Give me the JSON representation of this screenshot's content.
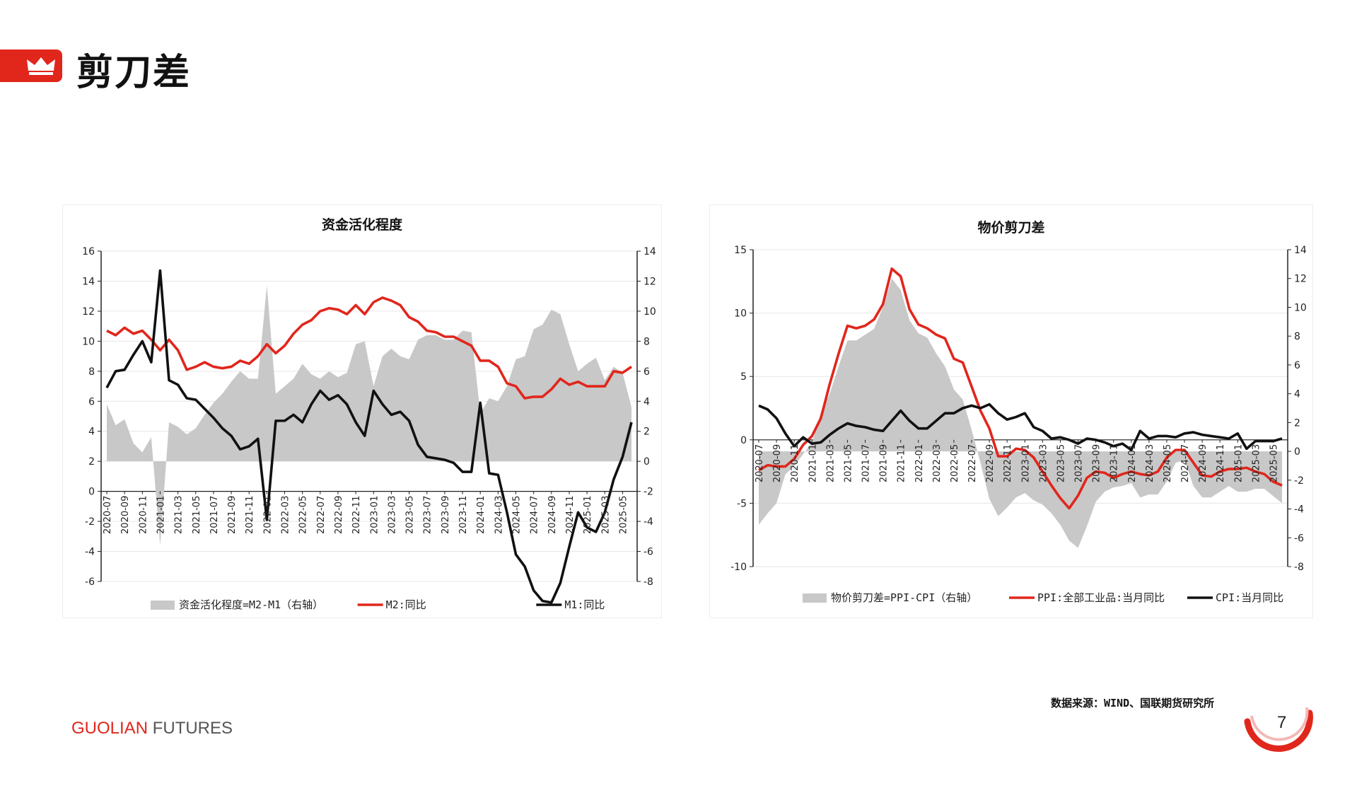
{
  "page": {
    "title": "剪刀差",
    "source": "数据来源：WIND、国联期货研究所",
    "brand_red": "GUOLIAN",
    "brand_gray": " FUTURES",
    "page_number": "7",
    "accent_color": "#e1261c"
  },
  "chart_data": [
    {
      "type": "line",
      "title": "资金活化程度",
      "x": [
        "2020-07",
        "2020-08",
        "2020-09",
        "2020-10",
        "2020-11",
        "2020-12",
        "2021-01",
        "2021-02",
        "2021-03",
        "2021-04",
        "2021-05",
        "2021-06",
        "2021-07",
        "2021-08",
        "2021-09",
        "2021-10",
        "2021-11",
        "2021-12",
        "2022-01",
        "2022-02",
        "2022-03",
        "2022-04",
        "2022-05",
        "2022-06",
        "2022-07",
        "2022-08",
        "2022-09",
        "2022-10",
        "2022-11",
        "2022-12",
        "2023-01",
        "2023-02",
        "2023-03",
        "2023-04",
        "2023-05",
        "2023-06",
        "2023-07",
        "2023-08",
        "2023-09",
        "2023-10",
        "2023-11",
        "2023-12",
        "2024-01",
        "2024-02",
        "2024-03",
        "2024-04",
        "2024-05",
        "2024-06",
        "2024-07",
        "2024-08",
        "2024-09",
        "2024-10",
        "2024-11",
        "2024-12",
        "2025-01",
        "2025-02",
        "2025-03",
        "2025-04",
        "2025-05",
        "2025-06"
      ],
      "x_tick_labels": [
        "2020-07",
        "2020-09",
        "2020-11",
        "2021-01",
        "2021-03",
        "2021-05",
        "2021-07",
        "2021-09",
        "2021-11",
        "2022-01",
        "2022-03",
        "2022-05",
        "2022-07",
        "2022-09",
        "2022-11",
        "2023-01",
        "2023-03",
        "2023-05",
        "2023-07",
        "2023-09",
        "2023-11",
        "2024-01",
        "2024-03",
        "2024-05",
        "2024-07",
        "2024-09",
        "2024-11",
        "2025-01",
        "2025-03",
        "2025-05"
      ],
      "ylim_left": [
        -6,
        16
      ],
      "yticks_left": [
        -6,
        -4,
        -2,
        0,
        2,
        4,
        6,
        8,
        10,
        12,
        14,
        16
      ],
      "ylim_right": [
        -8,
        14
      ],
      "yticks_right": [
        -8,
        -6,
        -4,
        -2,
        0,
        2,
        4,
        6,
        8,
        10,
        12,
        14
      ],
      "series": [
        {
          "name": "资金活化程度=M2-M1（右轴）",
          "kind": "area",
          "axis": "right",
          "color": "#c8c8c8",
          "values": [
            3.8,
            2.4,
            2.8,
            1.2,
            0.6,
            1.6,
            -5.6,
            2.6,
            2.3,
            1.8,
            2.2,
            3.1,
            3.9,
            4.5,
            5.3,
            6.0,
            5.5,
            5.5,
            11.7,
            4.5,
            5.0,
            5.5,
            6.5,
            5.8,
            5.5,
            6.0,
            5.6,
            5.9,
            7.8,
            8.0,
            5.0,
            7.0,
            7.5,
            7.0,
            6.8,
            8.1,
            8.4,
            8.4,
            8.1,
            8.1,
            8.7,
            8.6,
            3.2,
            4.2,
            4.0,
            5.0,
            6.8,
            7.0,
            8.8,
            9.1,
            10.1,
            9.8,
            7.8,
            6.0,
            6.5,
            6.9,
            5.4,
            6.3,
            5.9,
            3.6
          ]
        },
        {
          "name": "M2:同比",
          "kind": "line",
          "axis": "left",
          "color": "#e1261c",
          "values": [
            10.7,
            10.4,
            10.9,
            10.5,
            10.7,
            10.1,
            9.4,
            10.1,
            9.4,
            8.1,
            8.3,
            8.6,
            8.3,
            8.2,
            8.3,
            8.7,
            8.5,
            9.0,
            9.8,
            9.2,
            9.7,
            10.5,
            11.1,
            11.4,
            12.0,
            12.2,
            12.1,
            11.8,
            12.4,
            11.8,
            12.6,
            12.9,
            12.7,
            12.4,
            11.6,
            11.3,
            10.7,
            10.6,
            10.3,
            10.3,
            10.0,
            9.7,
            8.7,
            8.7,
            8.3,
            7.2,
            7.0,
            6.2,
            6.3,
            6.3,
            6.8,
            7.5,
            7.1,
            7.3,
            7.0,
            7.0,
            7.0,
            8.0,
            7.9,
            8.3
          ]
        },
        {
          "name": "M1:同比",
          "kind": "line",
          "axis": "left",
          "color": "#111111",
          "values": [
            6.9,
            8.0,
            8.1,
            9.1,
            10.0,
            8.6,
            14.7,
            7.4,
            7.1,
            6.2,
            6.1,
            5.5,
            4.9,
            4.2,
            3.7,
            2.8,
            3.0,
            3.5,
            -1.9,
            4.7,
            4.7,
            5.1,
            4.6,
            5.8,
            6.7,
            6.1,
            6.4,
            5.8,
            4.6,
            3.7,
            6.7,
            5.8,
            5.1,
            5.3,
            4.7,
            3.1,
            2.3,
            2.2,
            2.1,
            1.9,
            1.3,
            1.3,
            5.9,
            1.2,
            1.1,
            -1.4,
            -4.2,
            -5.0,
            -6.6,
            -7.3,
            -7.4,
            -6.1,
            -3.7,
            -1.4,
            -2.4,
            -2.7,
            -1.4,
            0.8,
            2.3,
            4.6
          ]
        }
      ],
      "series_axis_note": "M2/M1 plotted against left axis; 资金活化程度 against right axis",
      "legend_position": "bottom",
      "grid": true
    },
    {
      "type": "line",
      "title": "物价剪刀差",
      "x": [
        "2020-07",
        "2020-08",
        "2020-09",
        "2020-10",
        "2020-11",
        "2020-12",
        "2021-01",
        "2021-02",
        "2021-03",
        "2021-04",
        "2021-05",
        "2021-06",
        "2021-07",
        "2021-08",
        "2021-09",
        "2021-10",
        "2021-11",
        "2021-12",
        "2022-01",
        "2022-02",
        "2022-03",
        "2022-04",
        "2022-05",
        "2022-06",
        "2022-07",
        "2022-08",
        "2022-09",
        "2022-10",
        "2022-11",
        "2022-12",
        "2023-01",
        "2023-02",
        "2023-03",
        "2023-04",
        "2023-05",
        "2023-06",
        "2023-07",
        "2023-08",
        "2023-09",
        "2023-10",
        "2023-11",
        "2023-12",
        "2024-01",
        "2024-02",
        "2024-03",
        "2024-04",
        "2024-05",
        "2024-06",
        "2024-07",
        "2024-08",
        "2024-09",
        "2024-10",
        "2024-11",
        "2024-12",
        "2025-01",
        "2025-02",
        "2025-03",
        "2025-04",
        "2025-05",
        "2025-06"
      ],
      "x_tick_labels": [
        "2020-07",
        "2020-09",
        "2020-11",
        "2021-01",
        "2021-03",
        "2021-05",
        "2021-07",
        "2021-09",
        "2021-11",
        "2022-01",
        "2022-03",
        "2022-05",
        "2022-07",
        "2022-09",
        "2022-11",
        "2023-01",
        "2023-03",
        "2023-05",
        "2023-07",
        "2023-09",
        "2023-11",
        "2024-01",
        "2024-03",
        "2024-05",
        "2024-07",
        "2024-09",
        "2024-11",
        "2025-01",
        "2025-03",
        "2025-05"
      ],
      "ylim_left": [
        -10,
        15
      ],
      "yticks_left": [
        -10,
        -5,
        0,
        5,
        10,
        15
      ],
      "ylim_right": [
        -8,
        14
      ],
      "yticks_right": [
        -8,
        -6,
        -4,
        -2,
        0,
        2,
        4,
        6,
        8,
        10,
        12,
        14
      ],
      "series": [
        {
          "name": "物价剪刀差=PPI-CPI（右轴）",
          "kind": "area",
          "axis": "right",
          "color": "#c8c8c8",
          "values": [
            -5.1,
            -4.3,
            -3.6,
            -1.6,
            -1.0,
            -0.2,
            0.6,
            2.7,
            4.0,
            5.9,
            7.7,
            7.7,
            8.1,
            8.5,
            10.0,
            12.0,
            11.2,
            9.1,
            8.2,
            7.9,
            6.8,
            5.9,
            4.3,
            3.6,
            1.5,
            -0.8,
            -3.3,
            -4.5,
            -3.9,
            -3.2,
            -2.9,
            -3.4,
            -3.7,
            -4.3,
            -5.1,
            -6.2,
            -6.7,
            -5.2,
            -3.5,
            -2.8,
            -2.5,
            -2.4,
            -2.2,
            -3.2,
            -3.0,
            -3.0,
            -2.1,
            -0.8,
            -0.6,
            -2.4,
            -3.2,
            -3.2,
            -2.8,
            -2.4,
            -2.8,
            -2.8,
            -2.6,
            -2.6,
            -3.1,
            -3.6
          ]
        },
        {
          "name": "PPI:全部工业品:当月同比",
          "kind": "line",
          "axis": "left",
          "color": "#e1261c",
          "values": [
            -2.4,
            -2.0,
            -2.1,
            -2.1,
            -1.5,
            -0.4,
            0.3,
            1.7,
            4.4,
            6.8,
            9.0,
            8.8,
            9.0,
            9.5,
            10.7,
            13.5,
            12.9,
            10.3,
            9.1,
            8.8,
            8.3,
            8.0,
            6.4,
            6.1,
            4.2,
            2.3,
            0.9,
            -1.3,
            -1.3,
            -0.7,
            -0.8,
            -1.4,
            -2.5,
            -3.6,
            -4.6,
            -5.4,
            -4.4,
            -3.0,
            -2.5,
            -2.6,
            -3.0,
            -2.7,
            -2.5,
            -2.7,
            -2.8,
            -2.5,
            -1.4,
            -0.8,
            -0.8,
            -1.8,
            -2.8,
            -2.9,
            -2.5,
            -2.3,
            -2.3,
            -2.2,
            -2.5,
            -2.7,
            -3.3,
            -3.6
          ]
        },
        {
          "name": "CPI:当月同比",
          "kind": "line",
          "axis": "left",
          "color": "#111111",
          "values": [
            2.7,
            2.4,
            1.7,
            0.5,
            -0.5,
            0.2,
            -0.3,
            -0.2,
            0.4,
            0.9,
            1.3,
            1.1,
            1.0,
            0.8,
            0.7,
            1.5,
            2.3,
            1.5,
            0.9,
            0.9,
            1.5,
            2.1,
            2.1,
            2.5,
            2.7,
            2.5,
            2.8,
            2.1,
            1.6,
            1.8,
            2.1,
            1.0,
            0.7,
            0.1,
            0.2,
            0.0,
            -0.3,
            0.1,
            0.0,
            -0.2,
            -0.5,
            -0.3,
            -0.8,
            0.7,
            0.1,
            0.3,
            0.3,
            0.2,
            0.5,
            0.6,
            0.4,
            0.3,
            0.2,
            0.1,
            0.5,
            -0.7,
            -0.1,
            -0.1,
            -0.1,
            0.1
          ]
        }
      ],
      "legend_position": "bottom",
      "grid": true
    }
  ]
}
